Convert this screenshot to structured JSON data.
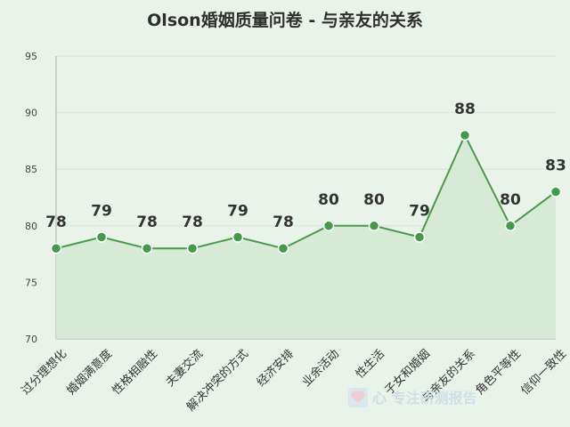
{
  "chart_data": {
    "type": "area",
    "title": "Olson婚姻质量问卷 - 与亲友的关系",
    "xlabel": "",
    "ylabel": "",
    "categories": [
      "过分理想化",
      "婚姻满意度",
      "性格相融性",
      "夫妻交流",
      "解决冲突的方式",
      "经济安排",
      "业余活动",
      "性生活",
      "子女和婚姻",
      "与亲友的关系",
      "角色平等性",
      "信仰一致性"
    ],
    "series": [
      {
        "values": [
          78,
          79,
          78,
          78,
          79,
          78,
          80,
          80,
          79,
          88,
          80,
          83
        ]
      }
    ],
    "ylim": [
      70,
      95
    ],
    "yticks": [
      "70",
      "75",
      "80",
      "85",
      "90",
      "95"
    ],
    "grid": true,
    "colors": {
      "line": "#4a9a4a",
      "fill": "#d2e8d2",
      "point": "#45994a",
      "background": "#eaf3ea"
    }
  },
  "watermark": {
    "text": "心 专注研测报告",
    "icon": "heart-icon"
  }
}
